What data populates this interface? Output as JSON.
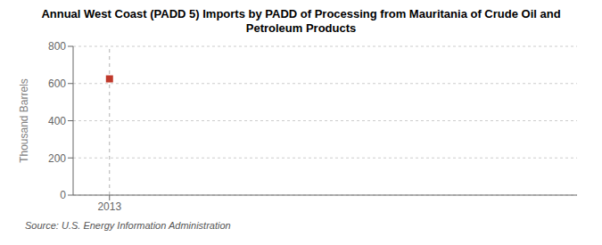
{
  "chart_data": {
    "type": "scatter",
    "title": "Annual West Coast (PADD 5) Imports by PADD of Processing from Mauritania of Crude Oil and\nPetroleum Products",
    "ylabel": "Thousand Barrels",
    "annotations": [
      "Source: U.S. Energy Information Administration"
    ],
    "x": [
      2013
    ],
    "values": [
      625
    ],
    "color": "#c0392b",
    "marker": "square",
    "xlim": [
      2012.3,
      2022.0
    ],
    "xticks": [
      2013
    ],
    "ylim": [
      0,
      800
    ],
    "yticks": [
      0,
      200,
      400,
      600,
      800
    ],
    "vline": 2013,
    "grid": true
  }
}
